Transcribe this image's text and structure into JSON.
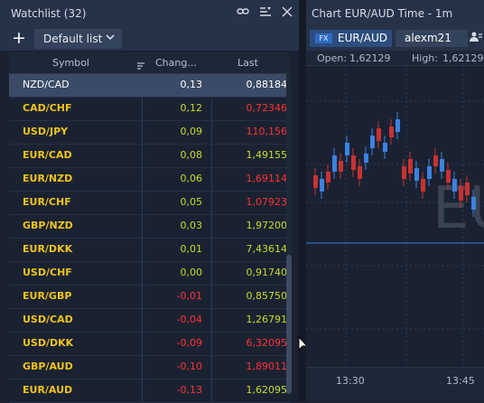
{
  "watchlist": {
    "title": "Watchlist (32)",
    "link_icon": "link-icon",
    "menu_icon": "menu-filter-icon",
    "close_icon": "close-icon",
    "add_icon": "plus-icon",
    "list_selector": "Default list",
    "columns": {
      "symbol": "Symbol",
      "change": "Chang...",
      "last": "Last"
    },
    "rows": [
      {
        "symbol": "NZD/CAD",
        "change": "0,13",
        "last": "0,88184",
        "change_dir": "up",
        "last_dir": "sel"
      },
      {
        "symbol": "CAD/CHF",
        "change": "0,12",
        "last": "0,72346",
        "change_dir": "up",
        "last_dir": "down"
      },
      {
        "symbol": "USD/JPY",
        "change": "0,09",
        "last": "110,156",
        "change_dir": "up",
        "last_dir": "down"
      },
      {
        "symbol": "EUR/CAD",
        "change": "0,08",
        "last": "1,49155",
        "change_dir": "up",
        "last_dir": "up"
      },
      {
        "symbol": "EUR/NZD",
        "change": "0,06",
        "last": "1,69114",
        "change_dir": "up",
        "last_dir": "down"
      },
      {
        "symbol": "EUR/CHF",
        "change": "0,05",
        "last": "1,07923",
        "change_dir": "up",
        "last_dir": "down"
      },
      {
        "symbol": "GBP/NZD",
        "change": "0,03",
        "last": "1,97200",
        "change_dir": "up",
        "last_dir": "up"
      },
      {
        "symbol": "EUR/DKK",
        "change": "0,01",
        "last": "7,43614",
        "change_dir": "up",
        "last_dir": "up"
      },
      {
        "symbol": "USD/CHF",
        "change": "0,00",
        "last": "0,91740",
        "change_dir": "up",
        "last_dir": "up"
      },
      {
        "symbol": "EUR/GBP",
        "change": "-0,01",
        "last": "0,85750",
        "change_dir": "down",
        "last_dir": "up"
      },
      {
        "symbol": "USD/CAD",
        "change": "-0,04",
        "last": "1,26791",
        "change_dir": "down",
        "last_dir": "up"
      },
      {
        "symbol": "USD/DKK",
        "change": "-0,09",
        "last": "6,32095",
        "change_dir": "down",
        "last_dir": "down"
      },
      {
        "symbol": "GBP/AUD",
        "change": "-0,10",
        "last": "1,89011",
        "change_dir": "down",
        "last_dir": "down"
      },
      {
        "symbol": "EUR/AUD",
        "change": "-0,13",
        "last": "1,62095",
        "change_dir": "down",
        "last_dir": "up"
      }
    ]
  },
  "chart": {
    "title": "Chart EUR/AUD Time - 1m",
    "instrument_badge": "FX",
    "instrument": "EUR/AUD",
    "account": "alexm21",
    "account_icon": "person-icon",
    "open_label": "Open:",
    "open_value": "1,62129",
    "high_label": "High:",
    "high_value": "1,62129",
    "time_labels": [
      "13:30",
      "13:45"
    ]
  },
  "colors": {
    "up": "#c8dc2a",
    "down": "#ff3232",
    "symbol": "#f0c419",
    "bull": "#3b82e0",
    "bear": "#c83232"
  }
}
